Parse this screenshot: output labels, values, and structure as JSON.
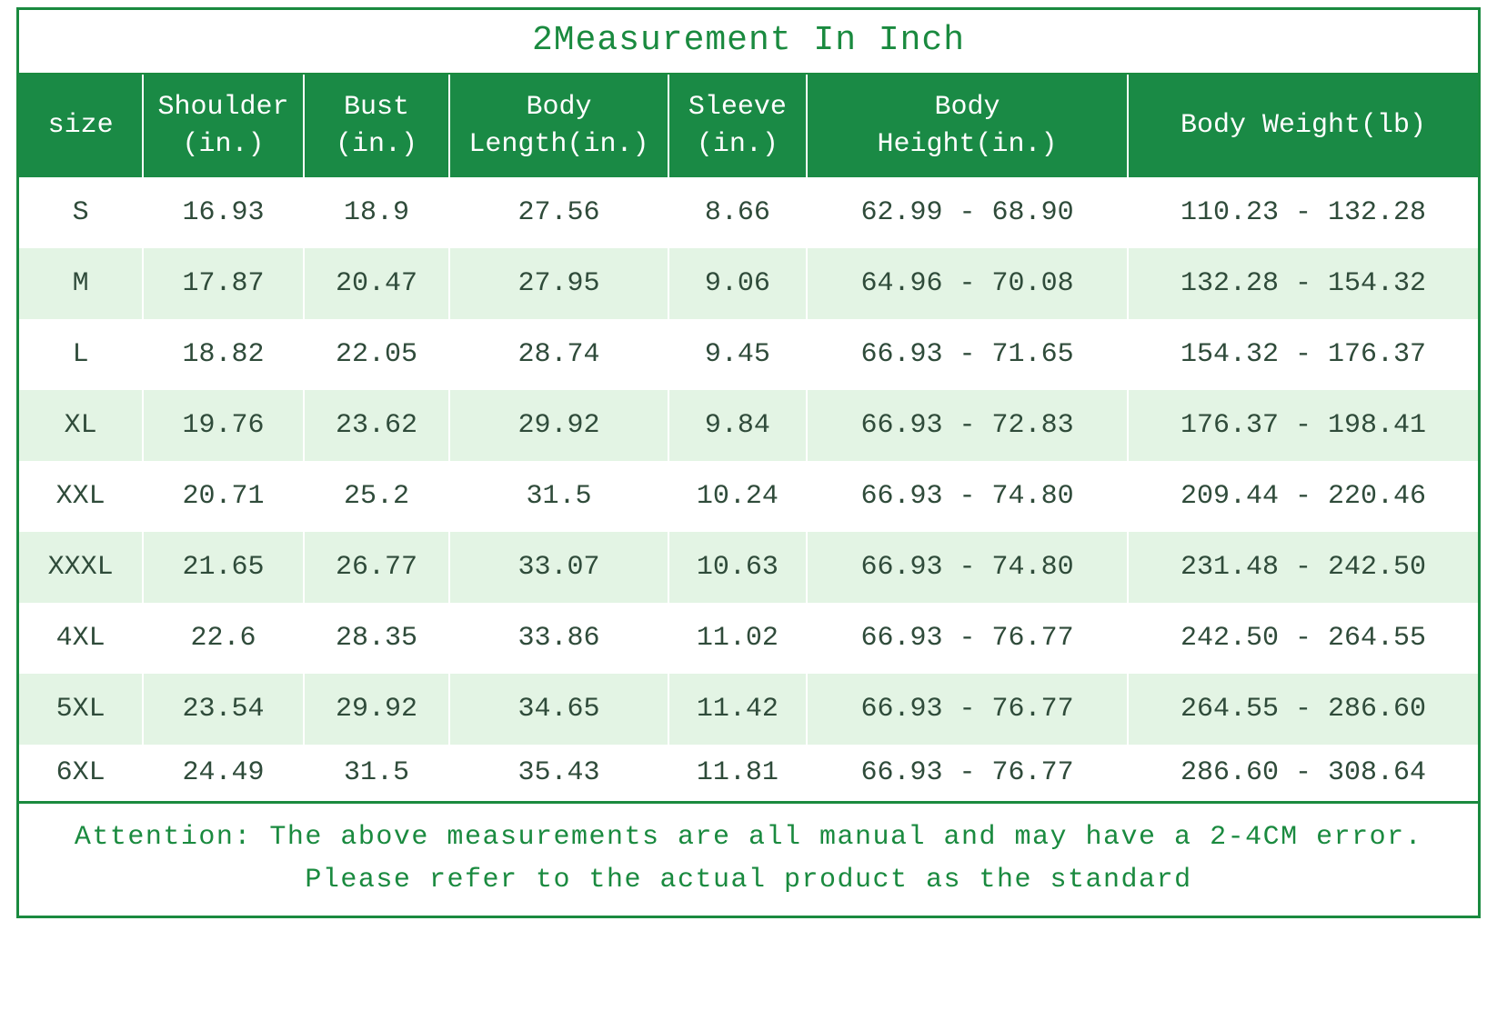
{
  "sizeChart": {
    "title": "2Measurement In Inch",
    "columns": [
      "size",
      "Shoulder\n(in.)",
      "Bust\n(in.)",
      "Body\nLength(in.)",
      "Sleeve\n(in.)",
      "Body\nHeight(in.)",
      "Body Weight(lb)"
    ],
    "rows": [
      [
        "S",
        "16.93",
        "18.9",
        "27.56",
        "8.66",
        "62.99 - 68.90",
        "110.23 - 132.28"
      ],
      [
        "M",
        "17.87",
        "20.47",
        "27.95",
        "9.06",
        "64.96 - 70.08",
        "132.28 - 154.32"
      ],
      [
        "L",
        "18.82",
        "22.05",
        "28.74",
        "9.45",
        "66.93 - 71.65",
        "154.32 - 176.37"
      ],
      [
        "XL",
        "19.76",
        "23.62",
        "29.92",
        "9.84",
        "66.93 - 72.83",
        "176.37 - 198.41"
      ],
      [
        "XXL",
        "20.71",
        "25.2",
        "31.5",
        "10.24",
        "66.93 - 74.80",
        "209.44 - 220.46"
      ],
      [
        "XXXL",
        "21.65",
        "26.77",
        "33.07",
        "10.63",
        "66.93 - 74.80",
        "231.48 - 242.50"
      ],
      [
        "4XL",
        "22.6",
        "28.35",
        "33.86",
        "11.02",
        "66.93 - 76.77",
        "242.50 - 264.55"
      ],
      [
        "5XL",
        "23.54",
        "29.92",
        "34.65",
        "11.42",
        "66.93 - 76.77",
        "264.55 - 286.60"
      ],
      [
        "6XL",
        "24.49",
        "31.5",
        "35.43",
        "11.81",
        "66.93 - 76.77",
        "286.60 - 308.64"
      ]
    ],
    "attention_line1": "Attention: The above measurements are all manual and may have a 2-4CM error.",
    "attention_line2": "Please refer to the actual product as the standard",
    "header_bg": "#1a8a45",
    "header_text_color": "#ffffff",
    "accent_color": "#1a8a3f",
    "alt_row_bg": "#e3f4e4",
    "row_bg": "#ffffff",
    "body_text_color": "#2f4b3a",
    "title_fontsize": 38,
    "header_fontsize": 30,
    "cell_fontsize": 30,
    "attention_fontsize": 30,
    "col_widths_pct": [
      8.5,
      11,
      10,
      15,
      9.5,
      22,
      24
    ]
  }
}
